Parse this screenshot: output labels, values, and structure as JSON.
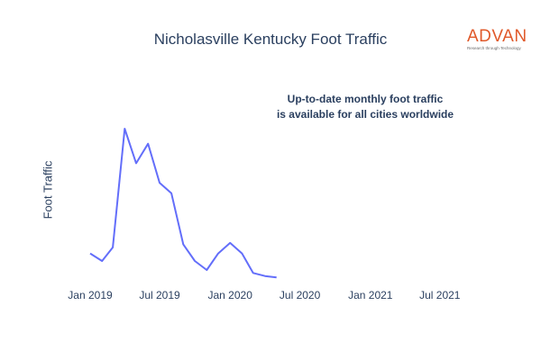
{
  "chart_data": {
    "type": "line",
    "title": "Nicholasville Kentucky Foot Traffic",
    "xlabel": "",
    "ylabel": "Foot Traffic",
    "annotation": [
      "Up-to-date monthly foot traffic",
      "is available for all cities worldwide"
    ],
    "xlim": [
      "2018-11-15",
      "2021-09-10"
    ],
    "x_ticks": [
      {
        "date": "2019-01-01",
        "label": "Jan 2019"
      },
      {
        "date": "2019-07-01",
        "label": "Jul 2019"
      },
      {
        "date": "2020-01-01",
        "label": "Jan 2020"
      },
      {
        "date": "2020-07-01",
        "label": "Jul 2020"
      },
      {
        "date": "2021-01-01",
        "label": "Jan 2021"
      },
      {
        "date": "2021-07-01",
        "label": "Jul 2021"
      }
    ],
    "ylim": [
      0,
      100
    ],
    "grid": false,
    "line_color": "#636efa",
    "series": [
      {
        "x": [
          "2019-01-01",
          "2019-02-01",
          "2019-03-01",
          "2019-04-01",
          "2019-05-01",
          "2019-06-01",
          "2019-07-01",
          "2019-08-01",
          "2019-09-01",
          "2019-10-01",
          "2019-11-01",
          "2019-12-01",
          "2020-01-01",
          "2020-02-01",
          "2020-03-01",
          "2020-04-01",
          "2020-05-01"
        ],
        "values": [
          17,
          12,
          21,
          100,
          77,
          90,
          64,
          57,
          23,
          12,
          6,
          17,
          24,
          17,
          4,
          2,
          1
        ]
      }
    ]
  },
  "logo": {
    "word": "ADVAN",
    "tagline": "Research through Technology",
    "color": "#e0592a"
  }
}
